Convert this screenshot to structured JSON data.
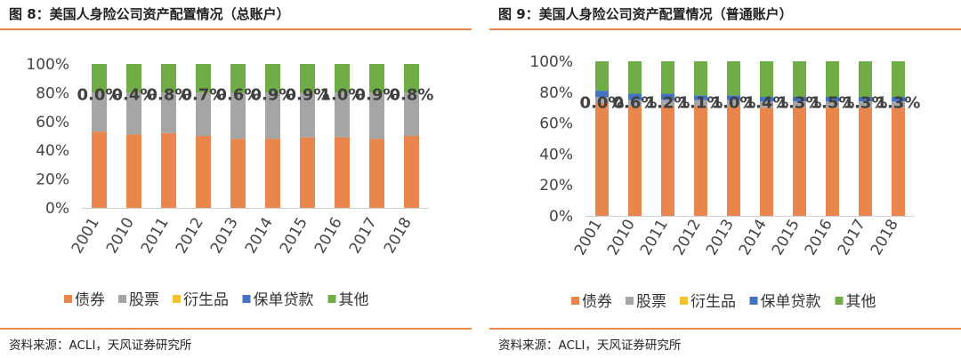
{
  "charts": [
    {
      "figure_title": "图 8：美国人身险公司资产配置情况（总账户）",
      "source": "资料来源：ACLI，天风证券研究所"
    },
    {
      "figure_title": "图 9：美国人身险公司资产配置情况（普通账户）",
      "source": "资料来源：ACLI，天风证券研究所"
    }
  ],
  "chart_data": [
    {
      "type": "bar",
      "stacked": true,
      "title": "图 8：美国人身险公司资产配置情况（总账户）",
      "categories": [
        "2001",
        "2010",
        "2011",
        "2012",
        "2013",
        "2014",
        "2015",
        "2016",
        "2017",
        "2018"
      ],
      "ylim": [
        0,
        1
      ],
      "yticks": [
        "0%",
        "20%",
        "40%",
        "60%",
        "80%",
        "100%"
      ],
      "series": [
        {
          "name": "债券",
          "color": "#e8864d",
          "values": [
            0.53,
            0.51,
            0.52,
            0.5,
            0.48,
            0.48,
            0.49,
            0.49,
            0.48,
            0.5
          ]
        },
        {
          "name": "股票",
          "color": "#a5a5a5",
          "values": [
            0.27,
            0.29,
            0.28,
            0.3,
            0.32,
            0.32,
            0.31,
            0.31,
            0.32,
            0.3
          ]
        },
        {
          "name": "衍生品",
          "color": "#f5c232",
          "values": [
            0.0,
            0.0,
            0.0,
            0.0,
            0.0,
            0.0,
            0.0,
            0.0,
            0.0,
            0.0
          ]
        },
        {
          "name": "保单贷款",
          "color": "#4472c4",
          "values": [
            0.0,
            0.0,
            0.0,
            0.0,
            0.0,
            0.0,
            0.0,
            0.0,
            0.0,
            0.0
          ]
        },
        {
          "name": "其他",
          "color": "#70ad47",
          "values": [
            0.2,
            0.2,
            0.2,
            0.2,
            0.2,
            0.2,
            0.2,
            0.2,
            0.2,
            0.2
          ]
        }
      ],
      "data_labels": [
        "0.0%",
        "0.4%",
        "0.8%",
        "0.7%",
        "0.6%",
        "0.9%",
        "0.9%",
        "1.0%",
        "0.9%",
        "0.8%"
      ],
      "data_label_value": 0.8,
      "legend_position": "bottom"
    },
    {
      "type": "bar",
      "stacked": true,
      "title": "图 9：美国人身险公司资产配置情况（普通账户）",
      "categories": [
        "2001",
        "2010",
        "2011",
        "2012",
        "2013",
        "2014",
        "2015",
        "2016",
        "2017",
        "2018"
      ],
      "ylim": [
        0,
        1
      ],
      "yticks": [
        "0%",
        "20%",
        "40%",
        "60%",
        "80%",
        "100%"
      ],
      "series": [
        {
          "name": "债券",
          "color": "#e8864d",
          "values": [
            0.73,
            0.71,
            0.71,
            0.71,
            0.71,
            0.7,
            0.7,
            0.7,
            0.7,
            0.7
          ]
        },
        {
          "name": "股票",
          "color": "#a5a5a5",
          "values": [
            0.04,
            0.04,
            0.04,
            0.04,
            0.04,
            0.04,
            0.04,
            0.04,
            0.04,
            0.04
          ]
        },
        {
          "name": "衍生品",
          "color": "#f5c232",
          "values": [
            0.0,
            0.0,
            0.0,
            0.0,
            0.0,
            0.0,
            0.0,
            0.0,
            0.0,
            0.0
          ]
        },
        {
          "name": "保单贷款",
          "color": "#4472c4",
          "values": [
            0.04,
            0.04,
            0.04,
            0.03,
            0.03,
            0.03,
            0.03,
            0.03,
            0.03,
            0.03
          ]
        },
        {
          "name": "其他",
          "color": "#70ad47",
          "values": [
            0.19,
            0.21,
            0.21,
            0.22,
            0.22,
            0.23,
            0.23,
            0.23,
            0.23,
            0.23
          ]
        }
      ],
      "data_labels": [
        "0.0%",
        "0.6%",
        "1.2%",
        "1.1%",
        "1.0%",
        "1.4%",
        "1.3%",
        "1.5%",
        "1.3%",
        "1.3%"
      ],
      "data_label_value": 0.745,
      "legend_position": "bottom"
    }
  ]
}
